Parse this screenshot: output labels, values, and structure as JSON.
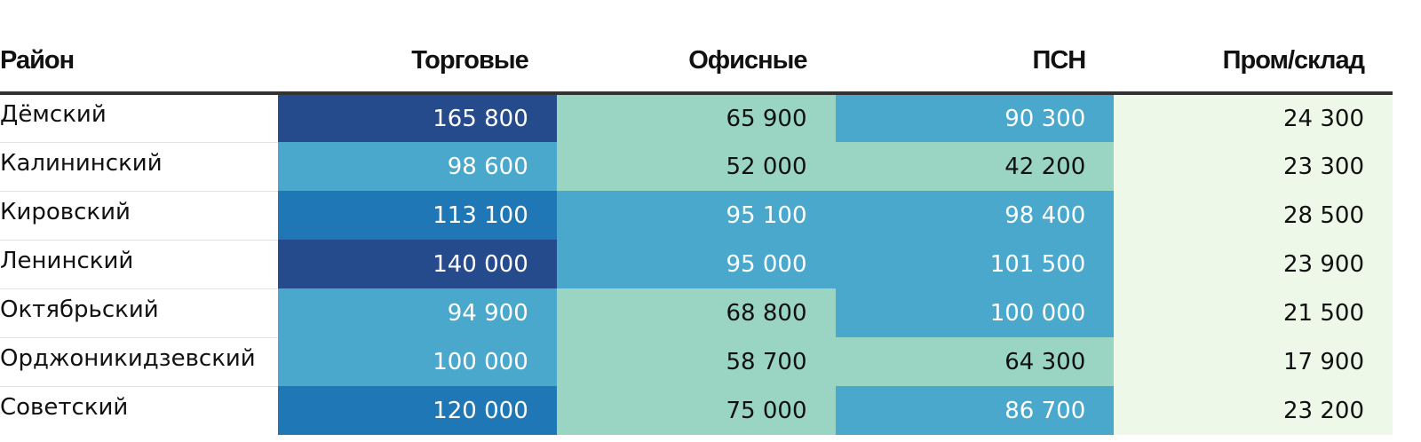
{
  "chart_data": {
    "type": "table",
    "columns": [
      "Район",
      "Торговые",
      "Офисные",
      "ПСН",
      "Пром/склад"
    ],
    "rows": [
      {
        "name": "Дёмский",
        "values": [
          "165 800",
          "65 900",
          "90 300",
          "24 300"
        ]
      },
      {
        "name": "Калининский",
        "values": [
          "98 600",
          "52 000",
          "42 200",
          "23 300"
        ]
      },
      {
        "name": "Кировский",
        "values": [
          "113 100",
          "95 100",
          "98 400",
          "28 500"
        ]
      },
      {
        "name": "Ленинский",
        "values": [
          "140 000",
          "95 000",
          "101 500",
          "23 900"
        ]
      },
      {
        "name": "Октябрьский",
        "values": [
          "94 900",
          "68 800",
          "100 000",
          "21 500"
        ]
      },
      {
        "name": "Орджоникидзевский",
        "values": [
          "100 000",
          "58 700",
          "64 300",
          "17 900"
        ]
      },
      {
        "name": "Советский",
        "values": [
          "120 000",
          "75 000",
          "86 700",
          "23 200"
        ]
      }
    ],
    "color_bins": [
      {
        "min": 0,
        "max": 40000,
        "color": "#edf8e9",
        "text": "#111111"
      },
      {
        "min": 40000,
        "max": 80000,
        "color": "#99d5c2",
        "text": "#111111"
      },
      {
        "min": 80000,
        "max": 110000,
        "color": "#4aa8cc",
        "text": "#ffffff"
      },
      {
        "min": 110000,
        "max": 130000,
        "color": "#1f78b5",
        "text": "#ffffff"
      },
      {
        "min": 130000,
        "max": 200000,
        "color": "#264b8c",
        "text": "#ffffff"
      }
    ]
  }
}
